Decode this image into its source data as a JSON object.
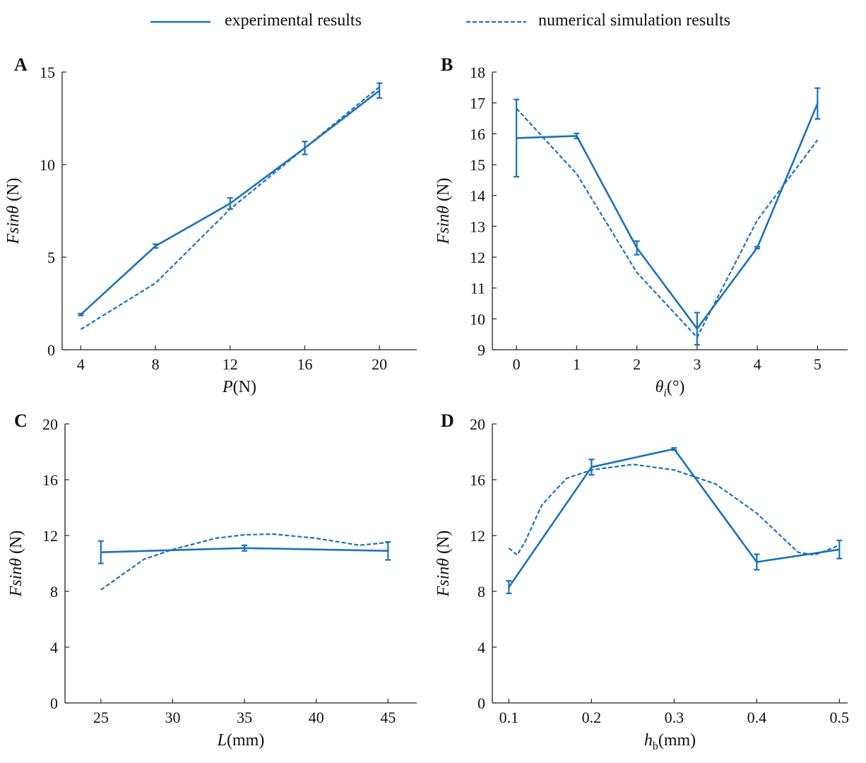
{
  "legend": {
    "experimental": "experimental results",
    "simulation": "numerical simulation results"
  },
  "colors": {
    "series": "#1a72bb",
    "axis": "#222222",
    "text": "#111111"
  },
  "chart_data": [
    {
      "panel": "A",
      "type": "line",
      "ylabel_main": "Fsinθ",
      "ylabel_unit": " (N)",
      "xlabel_main": "P",
      "xlabel_sub": "",
      "xlabel_unit": "(N)",
      "xlim": [
        3,
        22
      ],
      "ylim": [
        0,
        15
      ],
      "xticks": [
        4,
        8,
        12,
        16,
        20
      ],
      "xtick_labels": [
        "4",
        "8",
        "12",
        "16",
        "20"
      ],
      "yticks": [
        0,
        5,
        10,
        15
      ],
      "ytick_labels": [
        "0",
        "5",
        "10",
        "15"
      ],
      "series": [
        {
          "name": "experimental results",
          "style": "solid",
          "x": [
            4,
            8,
            12,
            16,
            20
          ],
          "y": [
            1.9,
            5.6,
            7.9,
            10.9,
            14.0
          ],
          "err": [
            0.05,
            0.1,
            0.3,
            0.35,
            0.4
          ]
        },
        {
          "name": "numerical simulation results",
          "style": "dashed",
          "x": [
            4,
            8,
            12,
            16,
            20
          ],
          "y": [
            1.1,
            3.6,
            7.6,
            10.9,
            14.2
          ]
        }
      ]
    },
    {
      "panel": "B",
      "type": "line",
      "ylabel_main": "Fsinθ",
      "ylabel_unit": " (N)",
      "xlabel_main": "θ",
      "xlabel_sub": "i",
      "xlabel_unit": "(°)",
      "xlim": [
        -0.4,
        5.5
      ],
      "ylim": [
        9,
        18
      ],
      "xticks": [
        0,
        1,
        2,
        3,
        4,
        5
      ],
      "xtick_labels": [
        "0",
        "1",
        "2",
        "3",
        "4",
        "5"
      ],
      "yticks": [
        9,
        10,
        11,
        12,
        13,
        14,
        15,
        16,
        17,
        18
      ],
      "ytick_labels": [
        "9",
        "10",
        "11",
        "12",
        "13",
        "14",
        "15",
        "16",
        "17",
        "18"
      ],
      "series": [
        {
          "name": "experimental results",
          "style": "solid",
          "x": [
            0,
            1,
            2,
            3,
            4,
            5
          ],
          "y": [
            15.86,
            15.93,
            12.3,
            9.68,
            12.31,
            16.98
          ],
          "err": [
            1.25,
            0.08,
            0.22,
            0.52,
            0.03,
            0.5
          ]
        },
        {
          "name": "numerical simulation results",
          "style": "dashed",
          "x": [
            0,
            1,
            2,
            3,
            4,
            5
          ],
          "y": [
            16.82,
            14.7,
            11.5,
            9.4,
            13.2,
            15.8
          ]
        }
      ]
    },
    {
      "panel": "C",
      "type": "line",
      "ylabel_main": "Fsinθ",
      "ylabel_unit": " (N)",
      "xlabel_main": "L",
      "xlabel_sub": "",
      "xlabel_unit": "(mm)",
      "xlim": [
        22.5,
        47
      ],
      "ylim": [
        0,
        20
      ],
      "xticks": [
        25,
        30,
        35,
        40,
        45
      ],
      "xtick_labels": [
        "25",
        "30",
        "35",
        "40",
        "45"
      ],
      "yticks": [
        0,
        4,
        8,
        12,
        16,
        20
      ],
      "ytick_labels": [
        "0",
        "4",
        "8",
        "12",
        "16",
        "20"
      ],
      "series": [
        {
          "name": "experimental results",
          "style": "solid",
          "x": [
            25,
            35,
            45
          ],
          "y": [
            10.8,
            11.1,
            10.9
          ],
          "err": [
            0.8,
            0.2,
            0.65
          ]
        },
        {
          "name": "numerical simulation results",
          "style": "dashed",
          "x": [
            25,
            28,
            30,
            33,
            35,
            37,
            40,
            43,
            45
          ],
          "y": [
            8.1,
            10.3,
            11.0,
            11.8,
            12.05,
            12.1,
            11.8,
            11.3,
            11.5
          ]
        }
      ]
    },
    {
      "panel": "D",
      "type": "line",
      "ylabel_main": "Fsinθ",
      "ylabel_unit": " (N)",
      "xlabel_main": "h",
      "xlabel_sub": "b",
      "xlabel_unit": "(mm)",
      "xlim": [
        0.08,
        0.51
      ],
      "ylim": [
        0,
        20
      ],
      "xticks": [
        0.1,
        0.2,
        0.3,
        0.4,
        0.5
      ],
      "xtick_labels": [
        "0.1",
        "0.2",
        "0.3",
        "0.4",
        "0.5"
      ],
      "yticks": [
        0,
        4,
        8,
        12,
        16,
        20
      ],
      "ytick_labels": [
        "0",
        "4",
        "8",
        "12",
        "16",
        "20"
      ],
      "series": [
        {
          "name": "experimental results",
          "style": "solid",
          "x": [
            0.1,
            0.2,
            0.3,
            0.4,
            0.5
          ],
          "y": [
            8.3,
            16.9,
            18.2,
            10.1,
            11.0
          ],
          "err": [
            0.45,
            0.55,
            0.08,
            0.55,
            0.65
          ]
        },
        {
          "name": "numerical simulation results",
          "style": "dashed",
          "x": [
            0.1,
            0.11,
            0.12,
            0.14,
            0.17,
            0.2,
            0.25,
            0.3,
            0.35,
            0.4,
            0.45,
            0.47,
            0.5
          ],
          "y": [
            11.1,
            10.6,
            11.6,
            14.2,
            16.1,
            16.7,
            17.1,
            16.7,
            15.7,
            13.6,
            10.8,
            10.6,
            11.3
          ]
        }
      ]
    }
  ]
}
